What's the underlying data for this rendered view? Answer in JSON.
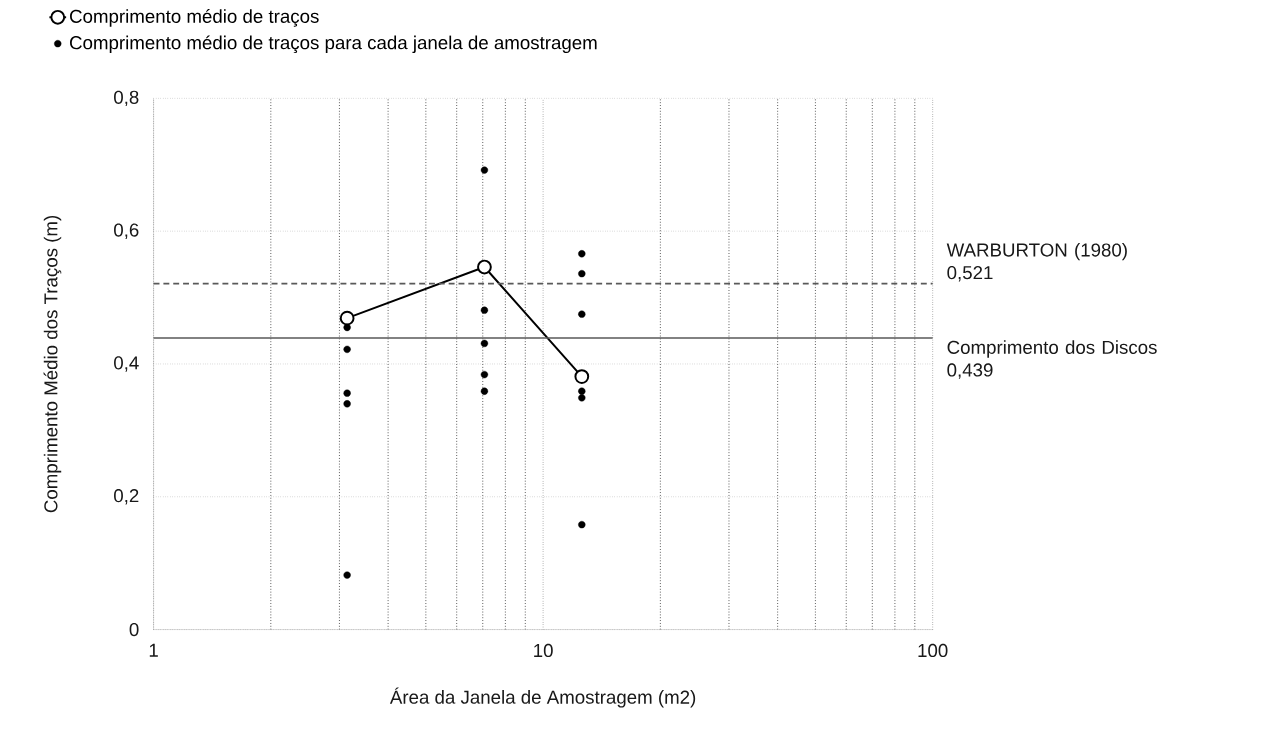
{
  "chart_data": {
    "type": "scatter",
    "xlabel": "Área da Janela de Amostragem (m2)",
    "ylabel": "Comprimento Médio dos Traços (m)",
    "log": "x",
    "xlim": [
      1,
      100
    ],
    "xticks": [
      1,
      10,
      100
    ],
    "ylim": [
      0,
      0.8
    ],
    "yticks": [
      0,
      {
        "value": 0.2,
        "label": "0,2"
      },
      {
        "value": 0.4,
        "label": "0,4"
      },
      {
        "value": 0.6,
        "label": "0,6"
      },
      {
        "value": 0.8,
        "label": "0,8"
      }
    ],
    "grid": true,
    "legend": "top left",
    "marker": "circle",
    "series": [
      {
        "name": "Comprimento médio de traços",
        "type": "line",
        "color": "#000000",
        "x": [
          3.14,
          7.07,
          12.57
        ],
        "values": [
          0.469,
          0.546,
          0.381
        ]
      },
      {
        "name": "Comprimento médio de traços para cada janela de amostragem",
        "color": "#000000",
        "x": [
          3.14,
          3.14,
          3.14,
          3.14,
          3.14,
          7.07,
          7.07,
          7.07,
          7.07,
          7.07,
          12.57,
          12.57,
          12.57,
          12.57,
          12.57,
          12.57
        ],
        "values": [
          0.455,
          0.422,
          0.356,
          0.34,
          0.082,
          0.692,
          0.481,
          0.431,
          0.384,
          0.359,
          0.566,
          0.536,
          0.475,
          0.359,
          0.349,
          0.158
        ]
      }
    ],
    "ref_lines": [
      {
        "axis": "y",
        "value": 0.521,
        "label": "WARBURTON (1980) 0,521",
        "line_style": "dashed",
        "color": "#595959"
      },
      {
        "axis": "y",
        "value": 0.439,
        "label": "Comprimento dos Discos 0,439",
        "line_style": "solid",
        "color": "#595959"
      }
    ]
  }
}
